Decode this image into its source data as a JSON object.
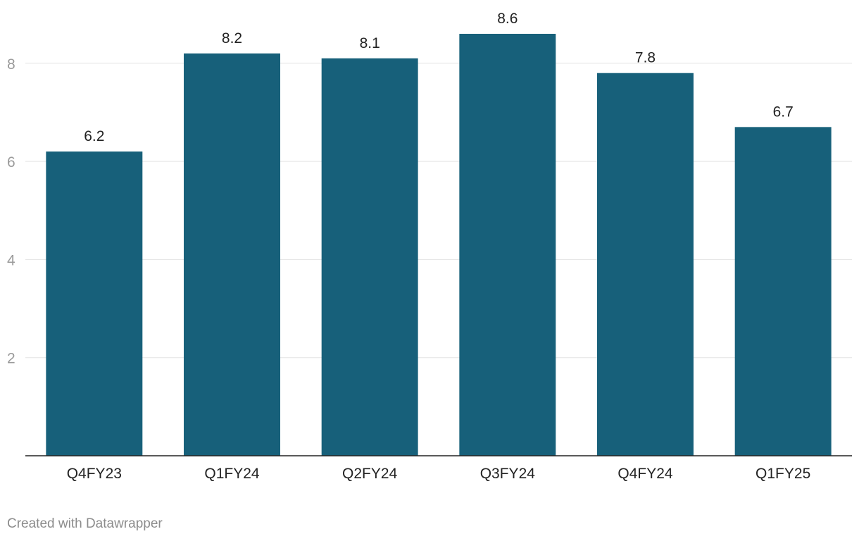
{
  "chart_data": {
    "type": "bar",
    "categories": [
      "Q4FY23",
      "Q1FY24",
      "Q2FY24",
      "Q3FY24",
      "Q4FY24",
      "Q1FY25"
    ],
    "values": [
      6.2,
      8.2,
      8.1,
      8.6,
      7.8,
      6.7
    ],
    "data_labels": [
      "6.2",
      "8.2",
      "8.1",
      "8.6",
      "7.8",
      "6.7"
    ],
    "title": "",
    "xlabel": "",
    "ylabel": "",
    "ylim": [
      0,
      8.6
    ],
    "yticks": [
      2,
      4,
      6,
      8
    ],
    "ytick_labels": [
      "2",
      "4",
      "6",
      "8"
    ],
    "grid": true,
    "bar_color": "#17607a"
  },
  "footer": {
    "credit": "Created with Datawrapper"
  }
}
